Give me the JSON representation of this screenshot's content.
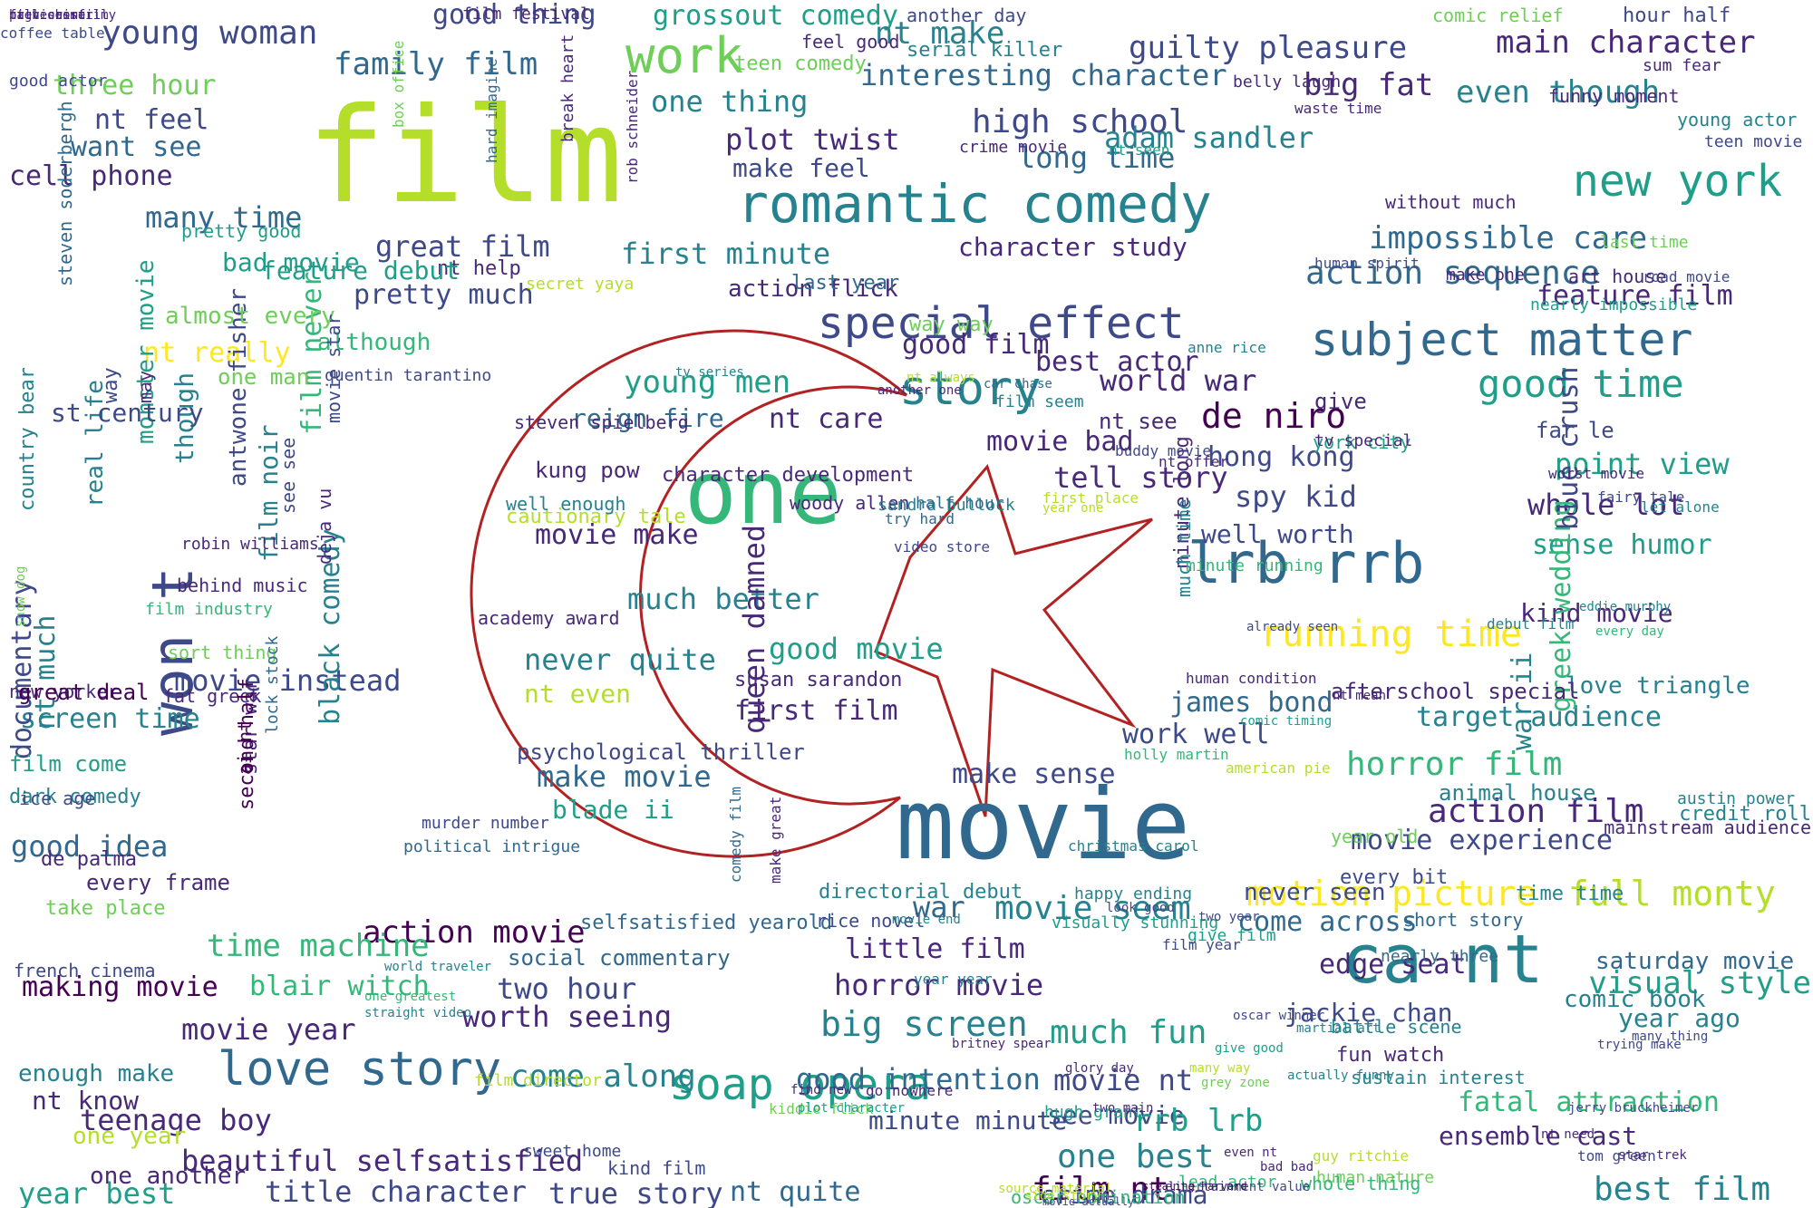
{
  "palette": [
    "#440154",
    "#482878",
    "#3e4989",
    "#31688e",
    "#26828e",
    "#1f9e89",
    "#35b779",
    "#6ece58",
    "#b5de2b",
    "#fde725"
  ],
  "emblem": {
    "shape": "crescent-and-star",
    "stroke_color": "#b22222"
  },
  "words": [
    {
      "t": "film",
      "c": 8
    },
    {
      "t": "movie",
      "c": 3
    },
    {
      "t": "romantic comedy",
      "c": 4
    },
    {
      "t": "one",
      "c": 6
    },
    {
      "t": "ca nt",
      "c": 4
    },
    {
      "t": "lrb rrb",
      "c": 3
    },
    {
      "t": "special effect",
      "c": 2
    },
    {
      "t": "love story",
      "c": 3
    },
    {
      "t": "work",
      "c": 7
    },
    {
      "t": "won t",
      "c": 2
    },
    {
      "t": "story",
      "c": 4
    },
    {
      "t": "subject matter",
      "c": 3
    },
    {
      "t": "new york",
      "c": 5
    },
    {
      "t": "young woman",
      "c": 2
    },
    {
      "t": "good time",
      "c": 5
    },
    {
      "t": "running time",
      "c": 9
    },
    {
      "t": "soap opera",
      "c": 5
    },
    {
      "t": "motion picture",
      "c": 9
    },
    {
      "t": "full monty",
      "c": 8
    },
    {
      "t": "action sequence",
      "c": 3
    },
    {
      "t": "high school",
      "c": 2
    },
    {
      "t": "guilty pleasure",
      "c": 2
    },
    {
      "t": "main character",
      "c": 1
    },
    {
      "t": "big fat",
      "c": 1
    },
    {
      "t": "even though",
      "c": 4
    },
    {
      "t": "family film",
      "c": 3
    },
    {
      "t": "good thing",
      "c": 2
    },
    {
      "t": "grossout comedy",
      "c": 5
    },
    {
      "t": "plot twist",
      "c": 1
    },
    {
      "t": "nt make",
      "c": 4
    },
    {
      "t": "interesting character",
      "c": 3
    },
    {
      "t": "great film",
      "c": 2
    },
    {
      "t": "character study",
      "c": 1
    },
    {
      "t": "first minute",
      "c": 4
    },
    {
      "t": "action flick",
      "c": 1
    },
    {
      "t": "bad movie",
      "c": 5
    },
    {
      "t": "pretty much",
      "c": 2
    },
    {
      "t": "nt really",
      "c": 9
    },
    {
      "t": "many time",
      "c": 3
    },
    {
      "t": "want see",
      "c": 3
    },
    {
      "t": "cell phone",
      "c": 1
    },
    {
      "t": "three hour",
      "c": 7
    },
    {
      "t": "nt feel",
      "c": 2
    },
    {
      "t": "one thing",
      "c": 4
    },
    {
      "t": "make feel",
      "c": 2
    },
    {
      "t": "long time",
      "c": 3
    },
    {
      "t": "adam sandler",
      "c": 4
    },
    {
      "t": "impossible care",
      "c": 3
    },
    {
      "t": "feature film",
      "c": 1
    },
    {
      "t": "good film",
      "c": 1
    },
    {
      "t": "best actor",
      "c": 1
    },
    {
      "t": "world war",
      "c": 1
    },
    {
      "t": "de niro",
      "c": 0
    },
    {
      "t": "movie bad",
      "c": 1
    },
    {
      "t": "tell story",
      "c": 1
    },
    {
      "t": "hong kong",
      "c": 2
    },
    {
      "t": "spy kid",
      "c": 2
    },
    {
      "t": "well worth",
      "c": 2
    },
    {
      "t": "young men",
      "c": 5
    },
    {
      "t": "reign fire",
      "c": 3
    },
    {
      "t": "nt care",
      "c": 1
    },
    {
      "t": "character development",
      "c": 1
    },
    {
      "t": "movie make",
      "c": 1
    },
    {
      "t": "much better",
      "c": 4
    },
    {
      "t": "never quite",
      "c": 4
    },
    {
      "t": "good movie",
      "c": 5
    },
    {
      "t": "nt even",
      "c": 8
    },
    {
      "t": "first film",
      "c": 1
    },
    {
      "t": "psychological thriller",
      "c": 2
    },
    {
      "t": "make movie",
      "c": 3
    },
    {
      "t": "blade ii",
      "c": 5
    },
    {
      "t": "make sense",
      "c": 2
    },
    {
      "t": "work well",
      "c": 2
    },
    {
      "t": "horror film",
      "c": 6
    },
    {
      "t": "action film",
      "c": 1
    },
    {
      "t": "movie experience",
      "c": 2
    },
    {
      "t": "action movie",
      "c": 0
    },
    {
      "t": "movie seem",
      "c": 4
    },
    {
      "t": "war",
      "c": 3
    },
    {
      "t": "little film",
      "c": 1
    },
    {
      "t": "horror movie",
      "c": 1
    },
    {
      "t": "big screen",
      "c": 4
    },
    {
      "t": "much fun",
      "c": 5
    },
    {
      "t": "two hour",
      "c": 2
    },
    {
      "t": "worth seeing",
      "c": 1
    },
    {
      "t": "come along",
      "c": 4
    },
    {
      "t": "good intention",
      "c": 3
    },
    {
      "t": "movie nt",
      "c": 2
    },
    {
      "t": "see movie",
      "c": 2
    },
    {
      "t": "minute minute",
      "c": 2
    },
    {
      "t": "one best",
      "c": 4
    },
    {
      "t": "film nt",
      "c": 0
    },
    {
      "t": "nt quite",
      "c": 3
    },
    {
      "t": "true story",
      "c": 2
    },
    {
      "t": "crime drama",
      "c": 2
    },
    {
      "t": "best film",
      "c": 4
    },
    {
      "t": "fatal attraction",
      "c": 6
    },
    {
      "t": "ensemble cast",
      "c": 1
    },
    {
      "t": "rrb lrb",
      "c": 5
    },
    {
      "t": "target audience",
      "c": 4
    },
    {
      "t": "point view",
      "c": 5
    },
    {
      "t": "whole lot",
      "c": 1
    },
    {
      "t": "sense humor",
      "c": 5
    },
    {
      "t": "kind movie",
      "c": 1
    },
    {
      "t": "love triangle",
      "c": 4
    },
    {
      "t": "visual style",
      "c": 5
    },
    {
      "t": "year ago",
      "c": 4
    },
    {
      "t": "edge seat",
      "c": 1
    },
    {
      "t": "come across",
      "c": 3
    },
    {
      "t": "never seen",
      "c": 2
    },
    {
      "t": "time time",
      "c": 4
    },
    {
      "t": "time machine",
      "c": 6
    },
    {
      "t": "blair witch",
      "c": 6
    },
    {
      "t": "making movie",
      "c": 0
    },
    {
      "t": "movie year",
      "c": 1
    },
    {
      "t": "enough make",
      "c": 4
    },
    {
      "t": "nt know",
      "c": 1
    },
    {
      "t": "teenage boy",
      "c": 1
    },
    {
      "t": "beautiful selfsatisfied",
      "c": 1
    },
    {
      "t": "year best",
      "c": 5
    },
    {
      "t": "title character",
      "c": 2
    },
    {
      "t": "one year",
      "c": 8
    },
    {
      "t": "one another",
      "c": 1
    },
    {
      "t": "good idea",
      "c": 3
    },
    {
      "t": "screen time",
      "c": 4
    },
    {
      "t": "movie instead",
      "c": 2
    },
    {
      "t": "real life",
      "c": 4
    },
    {
      "t": "monster movie",
      "c": 5
    },
    {
      "t": "though",
      "c": 4
    },
    {
      "t": "antwone fisher",
      "c": 2
    },
    {
      "t": "film never",
      "c": 6
    },
    {
      "t": "black comedy",
      "c": 4
    },
    {
      "t": "film noir",
      "c": 4
    },
    {
      "t": "documentary",
      "c": 2
    },
    {
      "t": "nt much",
      "c": 4
    },
    {
      "t": "greek wedding",
      "c": 6
    },
    {
      "t": "blue crush",
      "c": 2
    },
    {
      "t": "war ii",
      "c": 4
    },
    {
      "t": "james bond",
      "c": 3
    },
    {
      "t": "almost every",
      "c": 7
    },
    {
      "t": "one man",
      "c": 7
    },
    {
      "t": "although",
      "c": 6
    },
    {
      "t": "nt help",
      "c": 1
    },
    {
      "t": "last year",
      "c": 3
    },
    {
      "t": "try hard",
      "c": 3
    },
    {
      "t": "video store",
      "c": 2
    },
    {
      "t": "cautionary tale",
      "c": 8
    },
    {
      "t": "kung pow",
      "c": 1
    },
    {
      "t": "queen damned",
      "c": 1
    },
    {
      "t": "jackie chan",
      "c": 2
    },
    {
      "t": "way way",
      "c": 7
    },
    {
      "t": "far le",
      "c": 2
    },
    {
      "t": "give",
      "c": 1
    },
    {
      "t": "nt see",
      "c": 1
    },
    {
      "t": "feature debut",
      "c": 5
    },
    {
      "t": "st century",
      "c": 2
    },
    {
      "t": "country bear",
      "c": 4
    },
    {
      "t": "way",
      "c": 2
    },
    {
      "t": "may",
      "c": 1
    },
    {
      "t": "selfsatisfied yearold",
      "c": 3
    },
    {
      "t": "social commentary",
      "c": 3
    },
    {
      "t": "saturday movie",
      "c": 3
    },
    {
      "t": "comic book",
      "c": 4
    },
    {
      "t": "sustain interest",
      "c": 4
    },
    {
      "t": "fun watch",
      "c": 1
    },
    {
      "t": "battle scene",
      "c": 4
    },
    {
      "t": "short story",
      "c": 3
    },
    {
      "t": "nearly three",
      "c": 3
    },
    {
      "t": "afterschool special",
      "c": 1
    },
    {
      "t": "year old",
      "c": 7
    },
    {
      "t": "credit roll",
      "c": 4
    },
    {
      "t": "mainstream audience",
      "c": 1
    },
    {
      "t": "austin power",
      "c": 4
    },
    {
      "t": "de palma",
      "c": 1
    },
    {
      "t": "every frame",
      "c": 1
    },
    {
      "t": "take place",
      "c": 7
    },
    {
      "t": "film come",
      "c": 5
    },
    {
      "t": "dark comedy",
      "c": 4
    },
    {
      "t": "new yorker",
      "c": 1
    },
    {
      "t": "great deal",
      "c": 0
    },
    {
      "t": "sort thing",
      "c": 7
    },
    {
      "t": "fat greek",
      "c": 1
    },
    {
      "t": "french cinema",
      "c": 2
    },
    {
      "t": "ice age",
      "c": 2
    },
    {
      "t": "well enough",
      "c": 4
    },
    {
      "t": "academy award",
      "c": 1
    },
    {
      "t": "susan sarandon",
      "c": 1
    },
    {
      "t": "steven spielberg",
      "c": 1
    },
    {
      "t": "woody allen",
      "c": 1
    },
    {
      "t": "sandra bullock",
      "c": 4
    },
    {
      "t": "half hour",
      "c": 3
    },
    {
      "t": "tv series",
      "c": 4
    },
    {
      "t": "another one",
      "c": 1
    },
    {
      "t": "minute long",
      "c": 1
    },
    {
      "t": "much time",
      "c": 4
    },
    {
      "t": "first place",
      "c": 8
    },
    {
      "t": "year one",
      "c": 8
    },
    {
      "t": "car chase",
      "c": 3
    },
    {
      "t": "nt always",
      "c": 8
    },
    {
      "t": "minute running",
      "c": 6
    },
    {
      "t": "york city",
      "c": 5
    },
    {
      "t": "tv special",
      "c": 1
    },
    {
      "t": "star war",
      "c": 1
    },
    {
      "t": "movie star",
      "c": 2
    },
    {
      "t": "see see",
      "c": 2
    },
    {
      "t": "deja vu",
      "c": 1
    },
    {
      "t": "give film",
      "c": 5
    },
    {
      "t": "every bit",
      "c": 2
    },
    {
      "t": "animal house",
      "c": 4
    },
    {
      "t": "debut film",
      "c": 4
    },
    {
      "t": "eddie murphy",
      "c": 4
    },
    {
      "t": "every day",
      "c": 6
    },
    {
      "t": "sweet home",
      "c": 2
    },
    {
      "t": "kind film",
      "c": 2
    },
    {
      "t": "film director",
      "c": 8
    },
    {
      "t": "bad bad",
      "c": 1
    },
    {
      "t": "even nt",
      "c": 1
    },
    {
      "t": "hugh grant",
      "c": 5
    },
    {
      "t": "human nature",
      "c": 7
    },
    {
      "t": "guy ritchie",
      "c": 8
    },
    {
      "t": "tom green",
      "c": 2
    },
    {
      "t": "star trek",
      "c": 1
    },
    {
      "t": "whole thing",
      "c": 6
    },
    {
      "t": "lead actor",
      "c": 6
    },
    {
      "t": "oscar nomination",
      "c": 6
    },
    {
      "t": "side story",
      "c": 8
    },
    {
      "t": "source material",
      "c": 8
    },
    {
      "t": "entertainment value",
      "c": 2
    },
    {
      "t": "movie actually",
      "c": 2
    },
    {
      "t": "stealing harvard",
      "c": 0
    },
    {
      "t": "second half",
      "c": 0
    },
    {
      "t": "ai nt",
      "c": 0
    },
    {
      "t": "lock stock",
      "c": 3
    },
    {
      "t": "behind music",
      "c": 1
    },
    {
      "t": "robin williams",
      "c": 1
    },
    {
      "t": "steven soderbergh",
      "c": 3
    },
    {
      "t": "pretty good",
      "c": 5
    },
    {
      "t": "hard imagine",
      "c": 3
    },
    {
      "t": "break heart",
      "c": 1
    },
    {
      "t": "box office",
      "c": 7
    },
    {
      "t": "rob schneider",
      "c": 1
    },
    {
      "t": "quentin tarantino",
      "c": 2
    },
    {
      "t": "film industry",
      "c": 6
    },
    {
      "t": "snow dog",
      "c": 7
    },
    {
      "t": "murder number",
      "c": 2
    },
    {
      "t": "political intrigue",
      "c": 3
    },
    {
      "t": "secret yaya",
      "c": 8
    },
    {
      "t": "teen comedy",
      "c": 7
    },
    {
      "t": "serial killer",
      "c": 4
    },
    {
      "t": "feel good",
      "c": 1
    },
    {
      "t": "another day",
      "c": 2
    },
    {
      "t": "comic relief",
      "c": 7
    },
    {
      "t": "hour half",
      "c": 2
    },
    {
      "t": "funny moment",
      "c": 1
    },
    {
      "t": "sum fear",
      "c": 1
    },
    {
      "t": "teen movie",
      "c": 2
    },
    {
      "t": "young actor",
      "c": 4
    },
    {
      "t": "belly laugh",
      "c": 1
    },
    {
      "t": "waste time",
      "c": 1
    },
    {
      "t": "nt seen",
      "c": 5
    },
    {
      "t": "crime movie",
      "c": 1
    },
    {
      "t": "coffee table",
      "c": 2
    },
    {
      "t": "film festival",
      "c": 1
    },
    {
      "t": "good actor",
      "c": 2
    },
    {
      "t": "human spirit",
      "c": 2
    },
    {
      "t": "without much",
      "c": 1
    },
    {
      "t": "make one",
      "c": 1
    },
    {
      "t": "art house",
      "c": 1
    },
    {
      "t": "last time",
      "c": 7
    },
    {
      "t": "road movie",
      "c": 2
    },
    {
      "t": "nearly impossible",
      "c": 5
    },
    {
      "t": "worst movie",
      "c": 1
    },
    {
      "t": "fairy tale",
      "c": 2
    },
    {
      "t": "let alone",
      "c": 4
    },
    {
      "t": "anne rice",
      "c": 4
    },
    {
      "t": "buddy movie",
      "c": 2
    },
    {
      "t": "film seem",
      "c": 4
    },
    {
      "t": "nt offer",
      "c": 1
    },
    {
      "t": "already seen",
      "c": 2
    },
    {
      "t": "human condition",
      "c": 1
    },
    {
      "t": "nt mean",
      "c": 1
    },
    {
      "t": "comic timing",
      "c": 5
    },
    {
      "t": "holly martin",
      "c": 6
    },
    {
      "t": "american pie",
      "c": 8
    },
    {
      "t": "christmas carol",
      "c": 4
    },
    {
      "t": "rice novel",
      "c": 2
    },
    {
      "t": "directorial debut",
      "c": 4
    },
    {
      "t": "visually stunning",
      "c": 5
    },
    {
      "t": "happy ending",
      "c": 4
    },
    {
      "t": "film year",
      "c": 2
    },
    {
      "t": "two year",
      "c": 2
    },
    {
      "t": "year year",
      "c": 4
    },
    {
      "t": "movie end",
      "c": 4
    },
    {
      "t": "one greatest",
      "c": 6
    },
    {
      "t": "straight video",
      "c": 4
    },
    {
      "t": "world traveler",
      "c": 4
    },
    {
      "t": "comedy film",
      "c": 3
    },
    {
      "t": "make great",
      "c": 1
    },
    {
      "t": "go nowhere",
      "c": 1
    },
    {
      "t": "find new",
      "c": 1
    },
    {
      "t": "kiddie flick",
      "c": 7
    },
    {
      "t": "plot character",
      "c": 5
    },
    {
      "t": "britney spear",
      "c": 1
    },
    {
      "t": "look good",
      "c": 2
    },
    {
      "t": "oscar winner",
      "c": 2
    },
    {
      "t": "martial art",
      "c": 4
    },
    {
      "t": "give good",
      "c": 5
    },
    {
      "t": "glory day",
      "c": 1
    },
    {
      "t": "many way",
      "c": 8
    },
    {
      "t": "two main",
      "c": 1
    },
    {
      "t": "grey zone",
      "c": 7
    },
    {
      "t": "actually funny",
      "c": 4
    },
    {
      "t": "trying make",
      "c": 2
    },
    {
      "t": "many thing",
      "c": 2
    },
    {
      "t": "jerry bruckheimer",
      "c": 2
    },
    {
      "t": "nt need",
      "c": 1
    },
    {
      "t": "fall short",
      "c": 1
    },
    {
      "t": "nt necessarily",
      "c": 1
    },
    {
      "t": "previous film",
      "c": 1
    },
    {
      "t": "high crime",
      "c": 1
    }
  ]
}
